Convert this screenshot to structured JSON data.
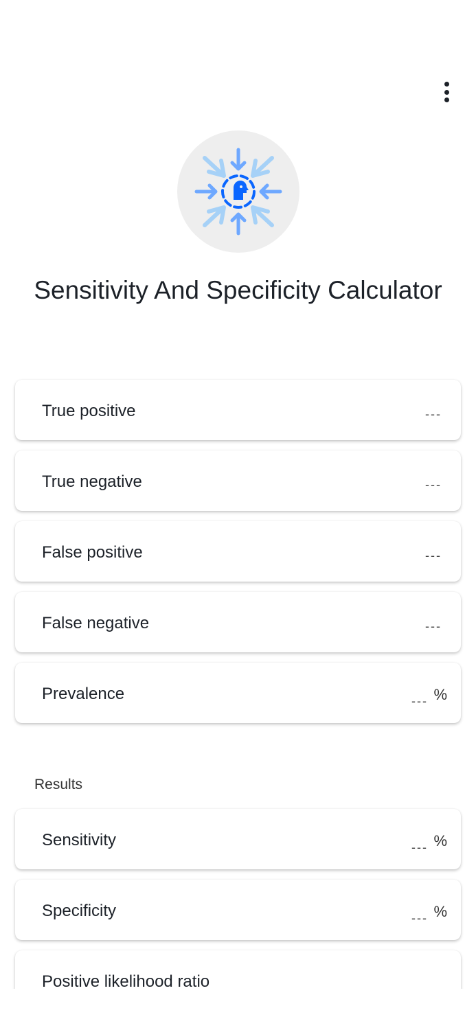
{
  "title": "Sensitivity And Specificity Calculator",
  "inputs": [
    {
      "label": "True positive",
      "value": "---",
      "unit": ""
    },
    {
      "label": "True negative",
      "value": "---",
      "unit": ""
    },
    {
      "label": "False positive",
      "value": "---",
      "unit": ""
    },
    {
      "label": "False negative",
      "value": "---",
      "unit": ""
    },
    {
      "label": "Prevalence",
      "value": "---",
      "unit": "%"
    }
  ],
  "results_label": "Results",
  "results": [
    {
      "label": "Sensitivity",
      "value": "---",
      "unit": "%"
    },
    {
      "label": "Specificity",
      "value": "---",
      "unit": "%"
    },
    {
      "label": "Positive likelihood ratio",
      "value": "",
      "unit": ""
    }
  ],
  "icons": {
    "menu": "more-vert-icon",
    "logo": "focus-head-icon"
  },
  "colors": {
    "accent": "#0a66ff",
    "arrow_mid": "#6ea8ff",
    "arrow_light": "#a6d1f7"
  }
}
